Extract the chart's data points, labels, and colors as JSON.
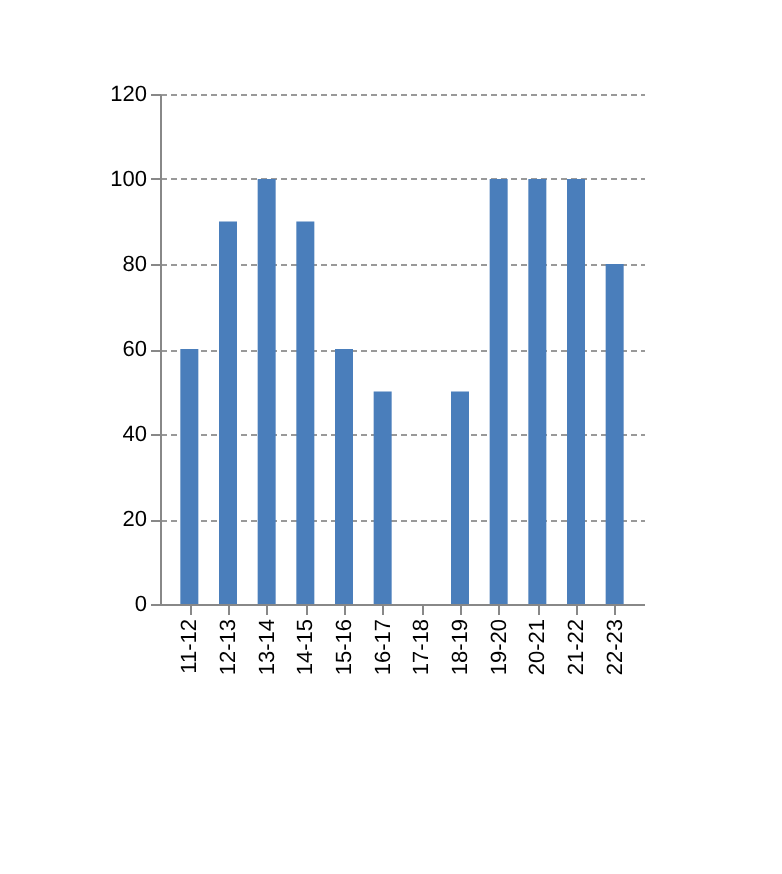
{
  "chart_data": {
    "type": "bar",
    "categories": [
      "11-12",
      "12-13",
      "13-14",
      "14-15",
      "15-16",
      "16-17",
      "17-18",
      "18-19",
      "19-20",
      "20-21",
      "21-22",
      "22-23"
    ],
    "values": [
      60,
      90,
      100,
      90,
      60,
      50,
      null,
      50,
      100,
      100,
      100,
      80
    ],
    "color": "#4a7ebb",
    "ylim": [
      0,
      120
    ],
    "yticks": [
      0,
      20,
      40,
      60,
      80,
      100,
      120
    ],
    "grid": "y"
  }
}
